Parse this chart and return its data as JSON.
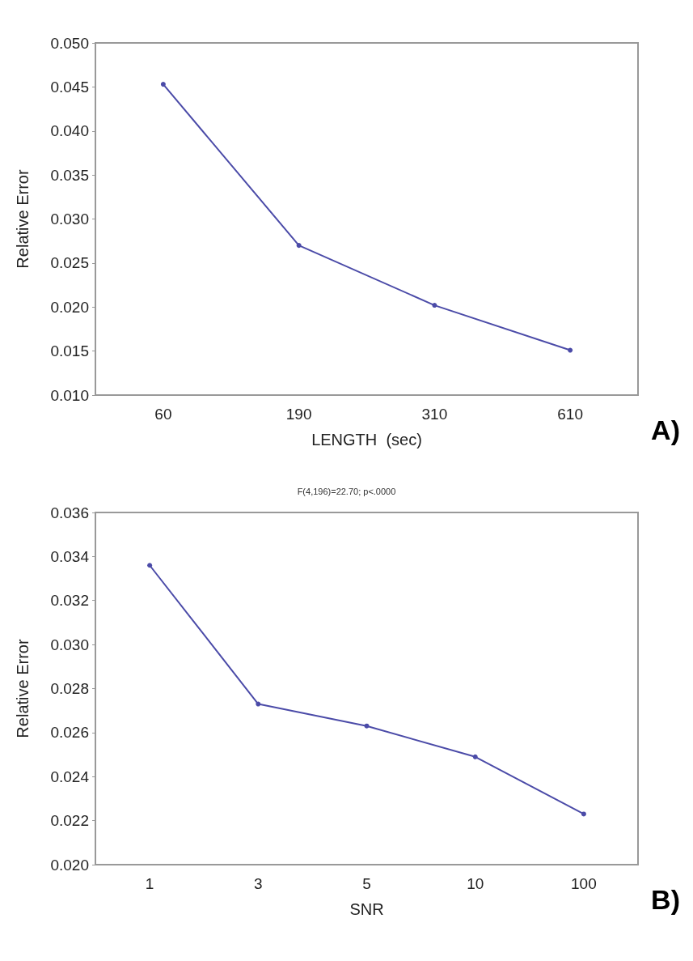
{
  "chart_data": [
    {
      "type": "line",
      "categories": [
        "60",
        "190",
        "310",
        "610"
      ],
      "xlabel": "LENGTH  (sec)",
      "ylabel": "Relative Error",
      "annotations": [
        "A)"
      ],
      "series": [
        {
          "color": "#4b4ba8",
          "values": [
            0.0453,
            0.027,
            0.0202,
            0.0151
          ]
        }
      ],
      "ylim": [
        0.01,
        0.05
      ],
      "yticks": [
        {
          "value": 0.01,
          "label": "0.010"
        },
        {
          "value": 0.015,
          "label": "0.015"
        },
        {
          "value": 0.02,
          "label": "0.020"
        },
        {
          "value": 0.025,
          "label": "0.025"
        },
        {
          "value": 0.03,
          "label": "0.030"
        },
        {
          "value": 0.035,
          "label": "0.035"
        },
        {
          "value": 0.04,
          "label": "0.040"
        },
        {
          "value": 0.045,
          "label": "0.045"
        },
        {
          "value": 0.05,
          "label": "0.050"
        }
      ],
      "grid": false,
      "marker": "circle",
      "line_style": "solid"
    },
    {
      "type": "line",
      "title": "F(4,196)=22.70; p<.0000",
      "categories": [
        "1",
        "3",
        "5",
        "10",
        "100"
      ],
      "xlabel": "SNR",
      "ylabel": "Relative Error",
      "annotations": [
        "B)"
      ],
      "series": [
        {
          "color": "#4b4ba8",
          "values": [
            0.0336,
            0.0273,
            0.0263,
            0.0249,
            0.0223
          ]
        }
      ],
      "ylim": [
        0.02,
        0.036
      ],
      "yticks": [
        {
          "value": 0.02,
          "label": "0.020"
        },
        {
          "value": 0.022,
          "label": "0.022"
        },
        {
          "value": 0.024,
          "label": "0.024"
        },
        {
          "value": 0.026,
          "label": "0.026"
        },
        {
          "value": 0.028,
          "label": "0.028"
        },
        {
          "value": 0.03,
          "label": "0.030"
        },
        {
          "value": 0.032,
          "label": "0.032"
        },
        {
          "value": 0.034,
          "label": "0.034"
        },
        {
          "value": 0.036,
          "label": "0.036"
        }
      ],
      "grid": false,
      "marker": "circle",
      "line_style": "solid"
    }
  ]
}
